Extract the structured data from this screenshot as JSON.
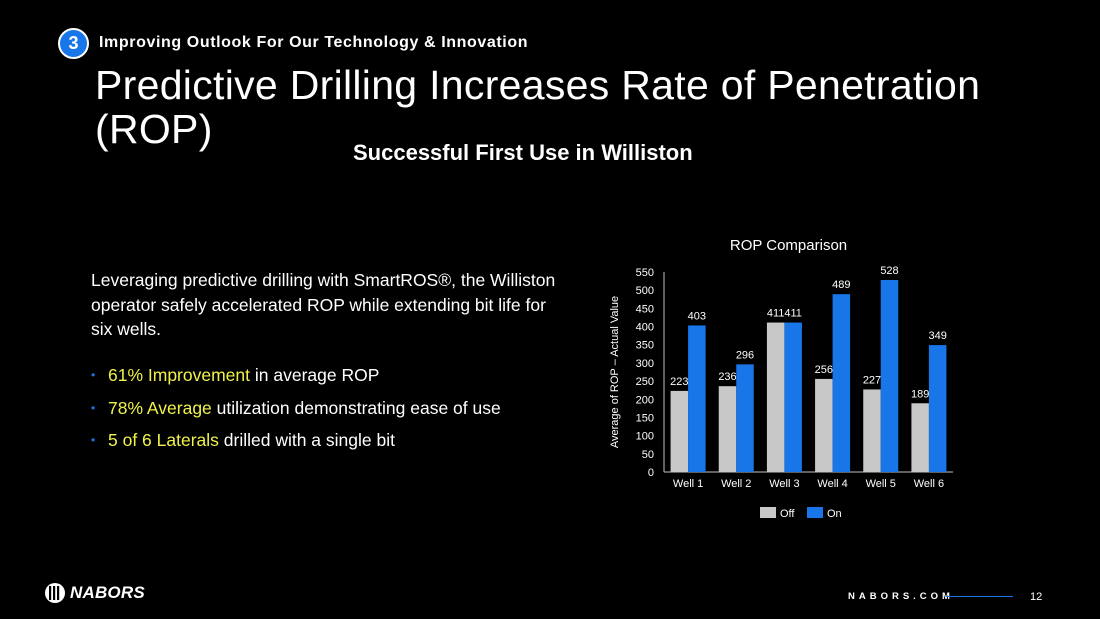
{
  "header": {
    "section_number": "3",
    "section_label": "Improving Outlook For Our Technology & Innovation",
    "title": "Predictive Drilling Increases Rate of Penetration (ROP)",
    "subtitle": "Successful First Use in Williston"
  },
  "body": {
    "intro": "Leveraging predictive drilling with SmartROS®, the Williston operator safely accelerated ROP while extending bit life for six wells.",
    "bullets": [
      {
        "highlight": "61% Improvement",
        "rest": " in average ROP"
      },
      {
        "highlight": "78% Average",
        "rest": " utilization demonstrating ease of use"
      },
      {
        "highlight": "5 of 6 Laterals",
        "rest": " drilled with a single bit"
      }
    ]
  },
  "colors": {
    "accent_blue": "#1976e8",
    "highlight_yellow": "#f1f24a",
    "bar_off": "#c8c8c8",
    "bar_on": "#1976e8"
  },
  "chart_data": {
    "type": "bar",
    "title": "ROP Comparison",
    "xlabel": "",
    "ylabel": "Average of ROP – Actual Value",
    "categories": [
      "Well 1",
      "Well 2",
      "Well 3",
      "Well 4",
      "Well 5",
      "Well 6"
    ],
    "series": [
      {
        "name": "Off",
        "values": [
          223,
          236,
          411,
          256,
          227,
          189
        ]
      },
      {
        "name": "On",
        "values": [
          403,
          296,
          411,
          489,
          528,
          349
        ]
      }
    ],
    "ylim": [
      0,
      550
    ],
    "yticks": [
      0,
      50,
      100,
      150,
      200,
      250,
      300,
      350,
      400,
      450,
      500,
      550
    ],
    "legend_position": "bottom",
    "grid": false
  },
  "footer": {
    "logo_text": "NABORS",
    "url": "NABORS.COM",
    "page_number": "12"
  }
}
